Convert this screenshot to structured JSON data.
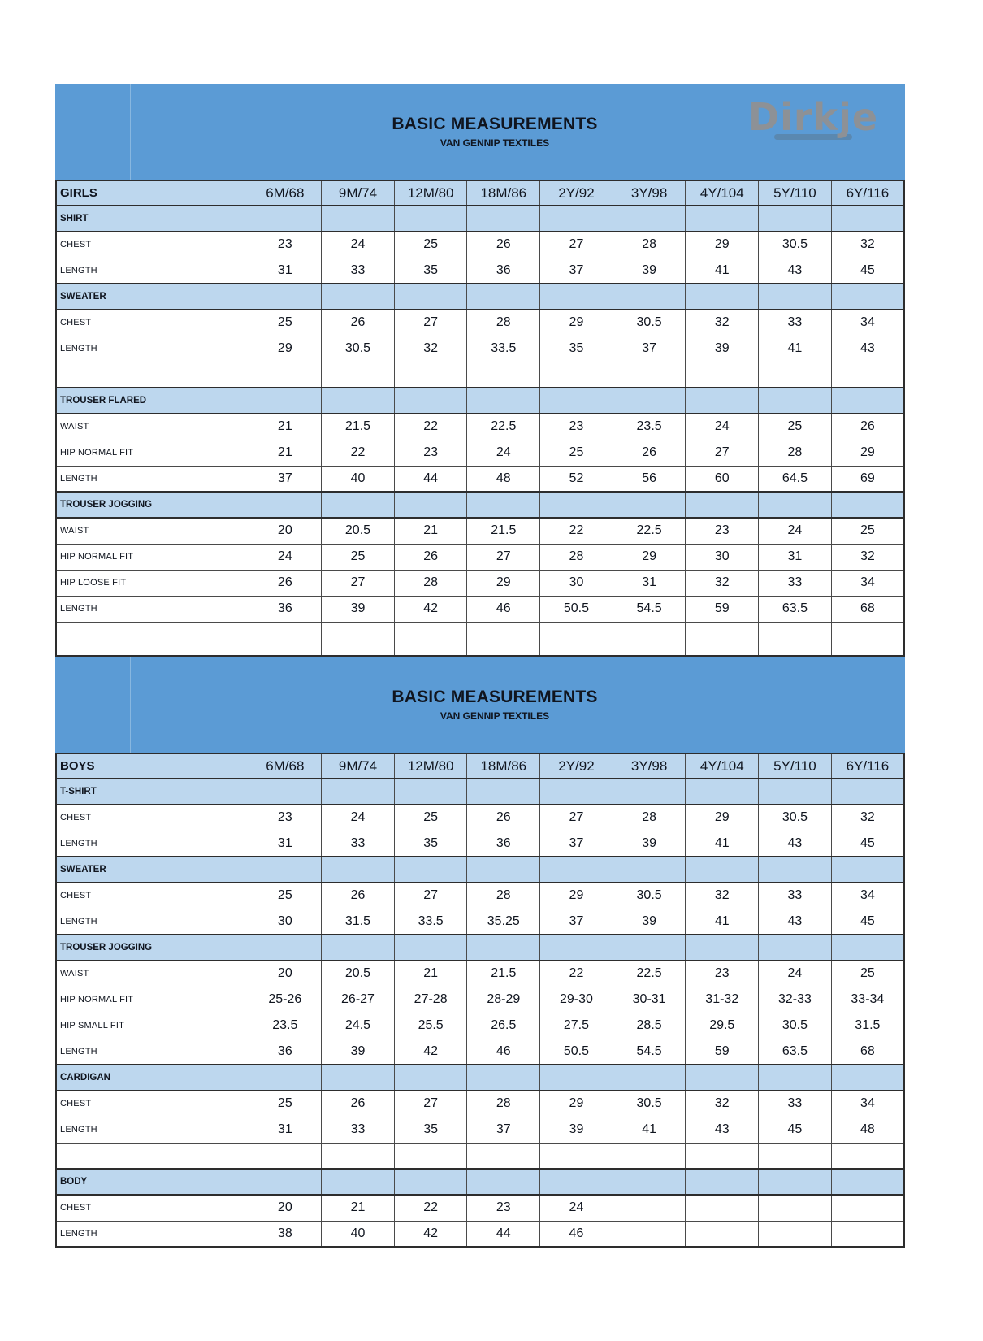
{
  "page": {
    "title": "BASIC MEASUREMENTS",
    "subtitle": "VAN GENNIP TEXTILES",
    "logo_text": "Dirkje"
  },
  "colors": {
    "banner_blue": "#5b9bd5",
    "header_row_blue": "#bdd7ee",
    "border_dark": "#2d2d2d",
    "text_dark": "#10151f",
    "logo_gray": "#8d9196"
  },
  "sizes": [
    "6M/68",
    "9M/74",
    "12M/80",
    "18M/86",
    "2Y/92",
    "3Y/98",
    "4Y/104",
    "5Y/110",
    "6Y/116"
  ],
  "tables": [
    {
      "group_label": "GIRLS",
      "show_logo": true,
      "rows": [
        {
          "type": "section",
          "label": "SHIRT"
        },
        {
          "type": "data",
          "label": "CHEST",
          "values": [
            "23",
            "24",
            "25",
            "26",
            "27",
            "28",
            "29",
            "30.5",
            "32"
          ]
        },
        {
          "type": "data",
          "label": "LENGTH",
          "values": [
            "31",
            "33",
            "35",
            "36",
            "37",
            "39",
            "41",
            "43",
            "45"
          ]
        },
        {
          "type": "section",
          "label": "SWEATER"
        },
        {
          "type": "data",
          "label": "CHEST",
          "values": [
            "25",
            "26",
            "27",
            "28",
            "29",
            "30.5",
            "32",
            "33",
            "34"
          ]
        },
        {
          "type": "data",
          "label": "LENGTH",
          "values": [
            "29",
            "30.5",
            "32",
            "33.5",
            "35",
            "37",
            "39",
            "41",
            "43"
          ]
        },
        {
          "type": "empty"
        },
        {
          "type": "section",
          "label": "TROUSER FLARED"
        },
        {
          "type": "data",
          "label": "WAIST",
          "values": [
            "21",
            "21.5",
            "22",
            "22.5",
            "23",
            "23.5",
            "24",
            "25",
            "26"
          ]
        },
        {
          "type": "data",
          "label": "HIP NORMAL FIT",
          "values": [
            "21",
            "22",
            "23",
            "24",
            "25",
            "26",
            "27",
            "28",
            "29"
          ]
        },
        {
          "type": "data",
          "label": "LENGTH",
          "values": [
            "37",
            "40",
            "44",
            "48",
            "52",
            "56",
            "60",
            "64.5",
            "69"
          ]
        },
        {
          "type": "section",
          "label": "TROUSER JOGGING"
        },
        {
          "type": "data",
          "label": "WAIST",
          "values": [
            "20",
            "20.5",
            "21",
            "21.5",
            "22",
            "22.5",
            "23",
            "24",
            "25"
          ]
        },
        {
          "type": "data",
          "label": "HIP NORMAL FIT",
          "values": [
            "24",
            "25",
            "26",
            "27",
            "28",
            "29",
            "30",
            "31",
            "32"
          ]
        },
        {
          "type": "data",
          "label": "HIP LOOSE FIT",
          "values": [
            "26",
            "27",
            "28",
            "29",
            "30",
            "31",
            "32",
            "33",
            "34"
          ]
        },
        {
          "type": "data",
          "label": "LENGTH",
          "values": [
            "36",
            "39",
            "42",
            "46",
            "50.5",
            "54.5",
            "59",
            "63.5",
            "68"
          ]
        },
        {
          "type": "empty",
          "tall": true
        }
      ]
    },
    {
      "group_label": "BOYS",
      "show_logo": false,
      "rows": [
        {
          "type": "section",
          "label": "T-SHIRT"
        },
        {
          "type": "data",
          "label": "CHEST",
          "values": [
            "23",
            "24",
            "25",
            "26",
            "27",
            "28",
            "29",
            "30.5",
            "32"
          ]
        },
        {
          "type": "data",
          "label": "LENGTH",
          "values": [
            "31",
            "33",
            "35",
            "36",
            "37",
            "39",
            "41",
            "43",
            "45"
          ]
        },
        {
          "type": "section",
          "label": "SWEATER"
        },
        {
          "type": "data",
          "label": "CHEST",
          "values": [
            "25",
            "26",
            "27",
            "28",
            "29",
            "30.5",
            "32",
            "33",
            "34"
          ]
        },
        {
          "type": "data",
          "label": "LENGTH",
          "values": [
            "30",
            "31.5",
            "33.5",
            "35.25",
            "37",
            "39",
            "41",
            "43",
            "45"
          ]
        },
        {
          "type": "section",
          "label": "TROUSER JOGGING"
        },
        {
          "type": "data",
          "label": "WAIST",
          "values": [
            "20",
            "20.5",
            "21",
            "21.5",
            "22",
            "22.5",
            "23",
            "24",
            "25"
          ]
        },
        {
          "type": "data",
          "label": "HIP NORMAL FIT",
          "values": [
            "25-26",
            "26-27",
            "27-28",
            "28-29",
            "29-30",
            "30-31",
            "31-32",
            "32-33",
            "33-34"
          ]
        },
        {
          "type": "data",
          "label": "HIP SMALL FIT",
          "values": [
            "23.5",
            "24.5",
            "25.5",
            "26.5",
            "27.5",
            "28.5",
            "29.5",
            "30.5",
            "31.5"
          ]
        },
        {
          "type": "data",
          "label": "LENGTH",
          "values": [
            "36",
            "39",
            "42",
            "46",
            "50.5",
            "54.5",
            "59",
            "63.5",
            "68"
          ]
        },
        {
          "type": "section",
          "label": "CARDIGAN"
        },
        {
          "type": "data",
          "label": "CHEST",
          "values": [
            "25",
            "26",
            "27",
            "28",
            "29",
            "30.5",
            "32",
            "33",
            "34"
          ]
        },
        {
          "type": "data",
          "label": "LENGTH",
          "values": [
            "31",
            "33",
            "35",
            "37",
            "39",
            "41",
            "43",
            "45",
            "48"
          ]
        },
        {
          "type": "empty"
        },
        {
          "type": "section",
          "label": "BODY"
        },
        {
          "type": "data",
          "label": "CHEST",
          "values": [
            "20",
            "21",
            "22",
            "23",
            "24",
            "",
            "",
            "",
            ""
          ]
        },
        {
          "type": "data",
          "label": "LENGTH",
          "values": [
            "38",
            "40",
            "42",
            "44",
            "46",
            "",
            "",
            "",
            ""
          ]
        }
      ]
    }
  ]
}
